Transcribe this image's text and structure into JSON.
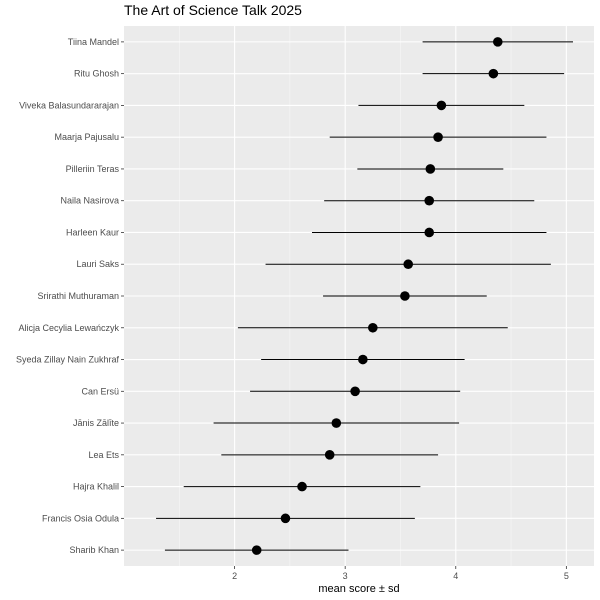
{
  "chart_data": {
    "type": "scatter",
    "title": "The Art of Science Talk 2025",
    "xlabel": "mean score ± sd",
    "ylabel": "",
    "xlim": [
      1.0,
      5.25
    ],
    "xticks": [
      2,
      3,
      4,
      5
    ],
    "grid": true,
    "error_bars": "sd",
    "points": [
      {
        "name": "Tiina Mandel",
        "mean": 4.38,
        "sd": 0.68
      },
      {
        "name": "Ritu Ghosh",
        "mean": 4.34,
        "sd": 0.64
      },
      {
        "name": "Viveka Balasundararajan",
        "mean": 3.87,
        "sd": 0.75
      },
      {
        "name": "Maarja Pajusalu",
        "mean": 3.84,
        "sd": 0.98
      },
      {
        "name": "Pilleriin Teras",
        "mean": 3.77,
        "sd": 0.66
      },
      {
        "name": "Naila Nasirova",
        "mean": 3.76,
        "sd": 0.95
      },
      {
        "name": "Harleen Kaur",
        "mean": 3.76,
        "sd": 1.06
      },
      {
        "name": "Lauri Saks",
        "mean": 3.57,
        "sd": 1.29
      },
      {
        "name": "Srirathi Muthuraman",
        "mean": 3.54,
        "sd": 0.74
      },
      {
        "name": "Alicja Cecylia Lewańczyk",
        "mean": 3.25,
        "sd": 1.22
      },
      {
        "name": "Syeda Zillay Nain Zukhraf",
        "mean": 3.16,
        "sd": 0.92
      },
      {
        "name": "Can Ersü",
        "mean": 3.09,
        "sd": 0.95
      },
      {
        "name": "Jānis Zālīte",
        "mean": 2.92,
        "sd": 1.11
      },
      {
        "name": "Lea Ets",
        "mean": 2.86,
        "sd": 0.98
      },
      {
        "name": "Hajra Khalil",
        "mean": 2.61,
        "sd": 1.07
      },
      {
        "name": "Francis Osia Odula",
        "mean": 2.46,
        "sd": 1.17
      },
      {
        "name": "Sharib Khan",
        "mean": 2.2,
        "sd": 0.83
      }
    ]
  }
}
